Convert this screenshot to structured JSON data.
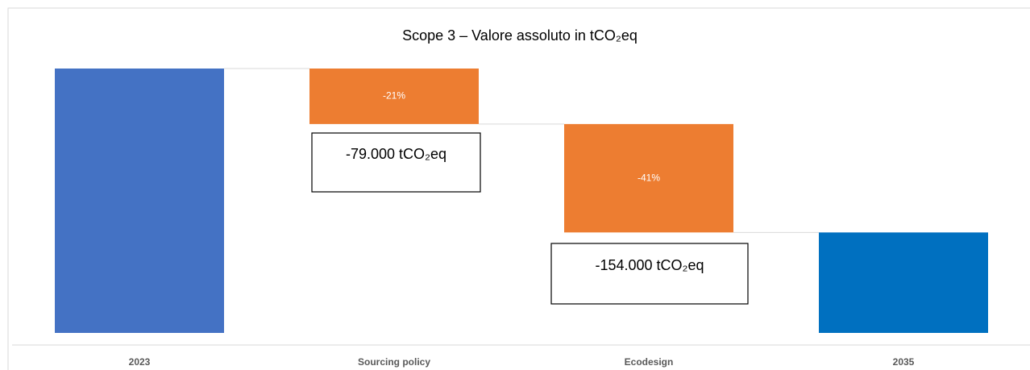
{
  "chart_data": {
    "type": "waterfall",
    "title": "Scope 3 – Valore assoluto in tCO₂eq",
    "categories": [
      "2023",
      "Sourcing policy",
      "Ecodesign",
      "2035"
    ],
    "values": [
      100,
      -21,
      -41,
      38
    ],
    "value_labels": [
      null,
      "-21%",
      "-41%",
      null
    ],
    "colors": [
      "#4472c4",
      "#ed7d31",
      "#ed7d31",
      "#0070c0"
    ],
    "ylim": [
      0,
      100
    ],
    "annotations": [
      "-79.000 tCO₂eq",
      "-154.000 tCO₂eq"
    ]
  }
}
